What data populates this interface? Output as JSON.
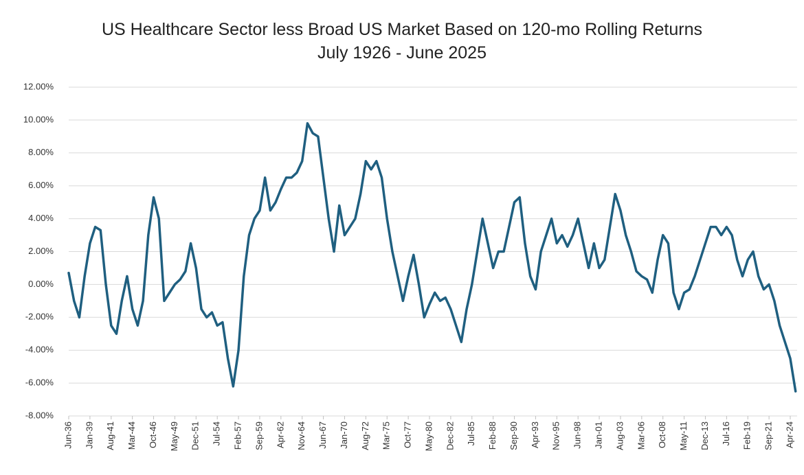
{
  "chart_data": {
    "type": "line",
    "title": "US Healthcare Sector less Broad US Market Based on 120-mo Rolling Returns July 1926 - June 2025",
    "categories": [
      "Jun-36",
      null,
      null,
      null,
      "Jan-39",
      null,
      null,
      null,
      "Aug-41",
      null,
      null,
      null,
      "Mar-44",
      null,
      null,
      null,
      "Oct-46",
      null,
      null,
      null,
      "May-49",
      null,
      null,
      null,
      "Dec-51",
      null,
      null,
      null,
      "Jul-54",
      null,
      null,
      null,
      "Feb-57",
      null,
      null,
      null,
      "Sep-59",
      null,
      null,
      null,
      "Apr-62",
      null,
      null,
      null,
      "Nov-64",
      null,
      null,
      null,
      "Jun-67",
      null,
      null,
      null,
      "Jan-70",
      null,
      null,
      null,
      "Aug-72",
      null,
      null,
      null,
      "Mar-75",
      null,
      null,
      null,
      "Oct-77",
      null,
      null,
      null,
      "May-80",
      null,
      null,
      null,
      "Dec-82",
      null,
      null,
      null,
      "Jul-85",
      null,
      null,
      null,
      "Feb-88",
      null,
      null,
      null,
      "Sep-90",
      null,
      null,
      null,
      "Apr-93",
      null,
      null,
      null,
      "Nov-95",
      null,
      null,
      null,
      "Jun-98",
      null,
      null,
      null,
      "Jan-01",
      null,
      null,
      null,
      "Aug-03",
      null,
      null,
      null,
      "Mar-06",
      null,
      null,
      null,
      "Oct-08",
      null,
      null,
      null,
      "May-11",
      null,
      null,
      null,
      "Dec-13",
      null,
      null,
      null,
      "Jul-16",
      null,
      null,
      null,
      "Feb-19",
      null,
      null,
      null,
      "Sep-21",
      null,
      null,
      null,
      "Apr-24",
      null
    ],
    "values": [
      0.7,
      -1.0,
      -2.0,
      0.5,
      2.5,
      3.5,
      3.3,
      0.0,
      -2.5,
      -3.0,
      -1.0,
      0.5,
      -1.5,
      -2.5,
      -1.0,
      3.0,
      5.3,
      4.0,
      -1.0,
      -0.5,
      0.0,
      0.3,
      0.8,
      2.5,
      1.0,
      -1.5,
      -2.0,
      -1.7,
      -2.5,
      -2.3,
      -4.5,
      -6.2,
      -4.0,
      0.5,
      3.0,
      4.0,
      4.5,
      6.5,
      4.5,
      5.0,
      5.8,
      6.5,
      6.5,
      6.8,
      7.5,
      9.8,
      9.2,
      9.0,
      6.5,
      4.0,
      2.0,
      4.8,
      3.0,
      3.5,
      4.0,
      5.5,
      7.5,
      7.0,
      7.5,
      6.5,
      4.0,
      2.0,
      0.5,
      -1.0,
      0.5,
      1.8,
      0.0,
      -2.0,
      -1.2,
      -0.5,
      -1.0,
      -0.8,
      -1.5,
      -2.5,
      -3.5,
      -1.5,
      0.0,
      2.0,
      4.0,
      2.5,
      1.0,
      2.0,
      2.0,
      3.5,
      5.0,
      5.3,
      2.5,
      0.5,
      -0.3,
      2.0,
      3.0,
      4.0,
      2.5,
      3.0,
      2.3,
      3.0,
      4.0,
      2.5,
      1.0,
      2.5,
      1.0,
      1.5,
      3.5,
      5.5,
      4.5,
      3.0,
      2.0,
      0.8,
      0.5,
      0.3,
      -0.5,
      1.5,
      3.0,
      2.5,
      -0.5,
      -1.5,
      -0.5,
      -0.3,
      0.5,
      1.5,
      2.5,
      3.5,
      3.5,
      3.0,
      3.5,
      3.0,
      1.5,
      0.5,
      1.5,
      2.0,
      0.5,
      -0.3,
      0.0,
      -1.0,
      -2.5,
      -3.5,
      -4.5,
      -6.5
    ],
    "color": "#1f5f80",
    "ylim": [
      -8,
      12
    ],
    "yticks": [
      {
        "value": -8,
        "label": "-8.00%"
      },
      {
        "value": -6,
        "label": "-6.00%"
      },
      {
        "value": -4,
        "label": "-4.00%"
      },
      {
        "value": -2,
        "label": "-2.00%"
      },
      {
        "value": 0,
        "label": "0.00%"
      },
      {
        "value": 2,
        "label": "2.00%"
      },
      {
        "value": 4,
        "label": "4.00%"
      },
      {
        "value": 6,
        "label": "6.00%"
      },
      {
        "value": 8,
        "label": "8.00%"
      },
      {
        "value": 10,
        "label": "10.00%"
      },
      {
        "value": 12,
        "label": "12.00%"
      }
    ],
    "grid": true
  }
}
